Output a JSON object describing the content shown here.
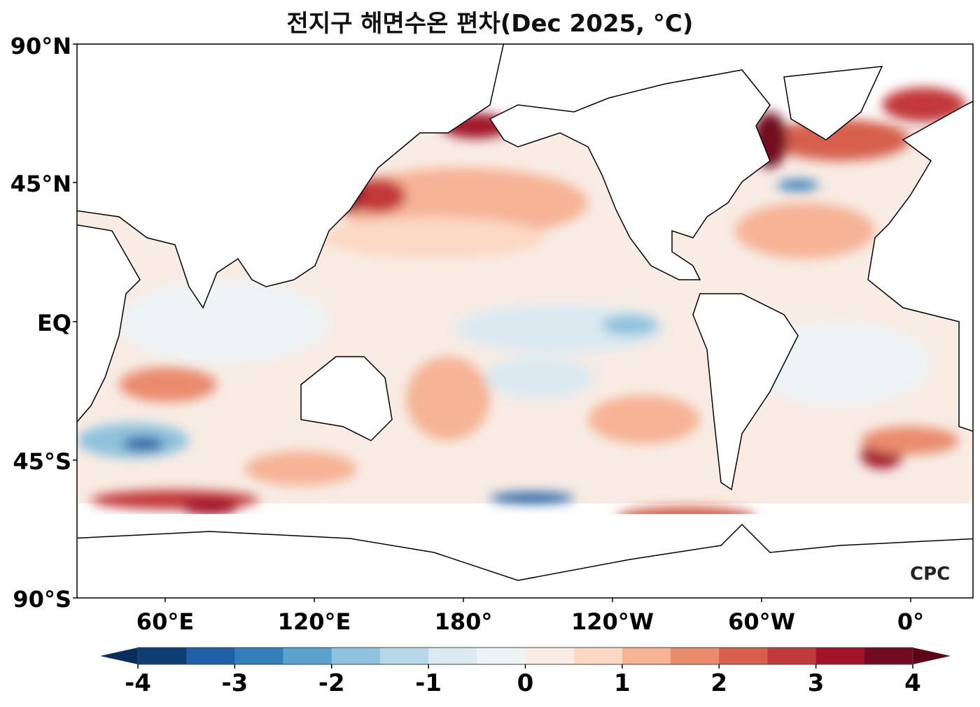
{
  "title": "전지구 해면수온 편차(Dec 2025, °C)",
  "y_axis": [
    "90°N",
    "45°N",
    "EQ",
    "45°S",
    "90°S"
  ],
  "x_axis": [
    "60°E",
    "120°E",
    "180°",
    "120°W",
    "60°W",
    "0°"
  ],
  "colorbar": {
    "ticks": [
      "-4",
      "-3",
      "-2",
      "-1",
      "0",
      "1",
      "2",
      "3",
      "4"
    ],
    "colors": [
      "#0d3d72",
      "#1f5fa6",
      "#347fbb",
      "#5aa2cc",
      "#8fc2dd",
      "#b8d7e8",
      "#dbe9f1",
      "#eef3f5",
      "#f8ece4",
      "#fcd8c5",
      "#f6b395",
      "#ea8b6e",
      "#d6604d",
      "#c2393a",
      "#a2132a",
      "#720a22"
    ],
    "under_color": "#0a2e5c",
    "over_color": "#5e0418"
  },
  "logo": "CPC"
}
